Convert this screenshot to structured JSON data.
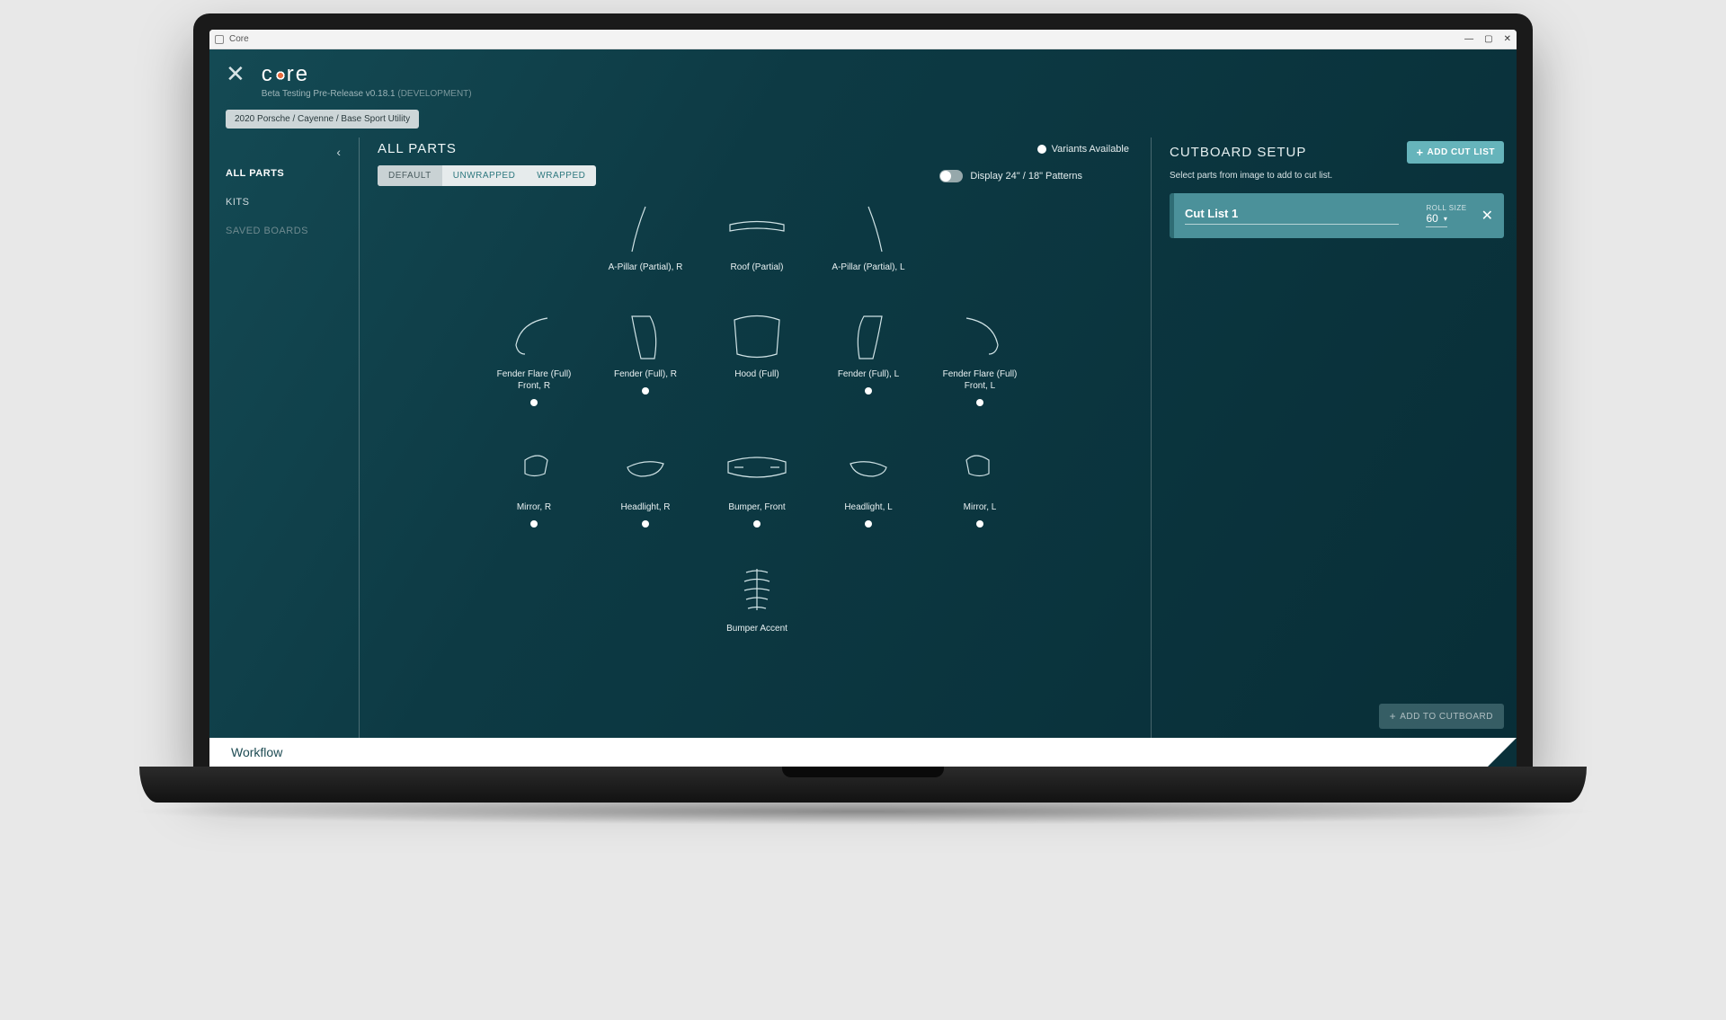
{
  "window": {
    "title": "Core"
  },
  "brand": {
    "logo_text_left": "c",
    "logo_text_right": "re",
    "subtitle": "Beta Testing Pre-Release v0.18.1",
    "subtitle_suffix": "(DEVELOPMENT)"
  },
  "breadcrumb": "2020 Porsche / Cayenne / Base Sport Utility",
  "sidebar": {
    "items": [
      {
        "label": "ALL PARTS",
        "active": true
      },
      {
        "label": "KITS",
        "active": false
      },
      {
        "label": "SAVED BOARDS",
        "active": false,
        "muted": true
      }
    ]
  },
  "main": {
    "title": "ALL PARTS",
    "variants_label": "Variants Available",
    "segments": [
      {
        "label": "DEFAULT",
        "active": true
      },
      {
        "label": "UNWRAPPED",
        "active": false
      },
      {
        "label": "WRAPPED",
        "active": false
      }
    ],
    "pattern_toggle_label": "Display 24\" / 18\" Patterns",
    "parts_rows": [
      [
        {
          "label": "A-Pillar (Partial), R",
          "shape": "pillar-r",
          "variant": false
        },
        {
          "label": "Roof (Partial)",
          "shape": "roof",
          "variant": false
        },
        {
          "label": "A-Pillar (Partial), L",
          "shape": "pillar-l",
          "variant": false
        }
      ],
      [
        {
          "label": "Fender Flare (Full) Front, R",
          "shape": "flare-r",
          "variant": true
        },
        {
          "label": "Fender (Full), R",
          "shape": "fender-r",
          "variant": true
        },
        {
          "label": "Hood (Full)",
          "shape": "hood",
          "variant": false
        },
        {
          "label": "Fender (Full), L",
          "shape": "fender-l",
          "variant": true
        },
        {
          "label": "Fender Flare (Full) Front, L",
          "shape": "flare-l",
          "variant": true
        }
      ],
      [
        {
          "label": "Mirror, R",
          "shape": "mirror-r",
          "variant": true
        },
        {
          "label": "Headlight, R",
          "shape": "headlight",
          "variant": true
        },
        {
          "label": "Bumper, Front",
          "shape": "bumper",
          "variant": true
        },
        {
          "label": "Headlight, L",
          "shape": "headlight-l",
          "variant": true
        },
        {
          "label": "Mirror, L",
          "shape": "mirror-l",
          "variant": true
        }
      ],
      [
        {
          "label": "Bumper Accent",
          "shape": "accent",
          "variant": false
        }
      ]
    ]
  },
  "cutboard": {
    "title": "CUTBOARD SETUP",
    "add_cut_label": "ADD CUT LIST",
    "subtitle": "Select parts from image to add to cut list.",
    "list": {
      "name": "Cut List 1",
      "roll_label": "ROLL SIZE",
      "roll_value": "60"
    },
    "add_to_cutboard_label": "ADD TO CUTBOARD"
  },
  "footer": {
    "workflow_label": "Workflow"
  },
  "colors": {
    "accent": "#66b4bb",
    "card": "#4b919a",
    "bg_grad_a": "#144a54",
    "bg_grad_b": "#082e37"
  }
}
